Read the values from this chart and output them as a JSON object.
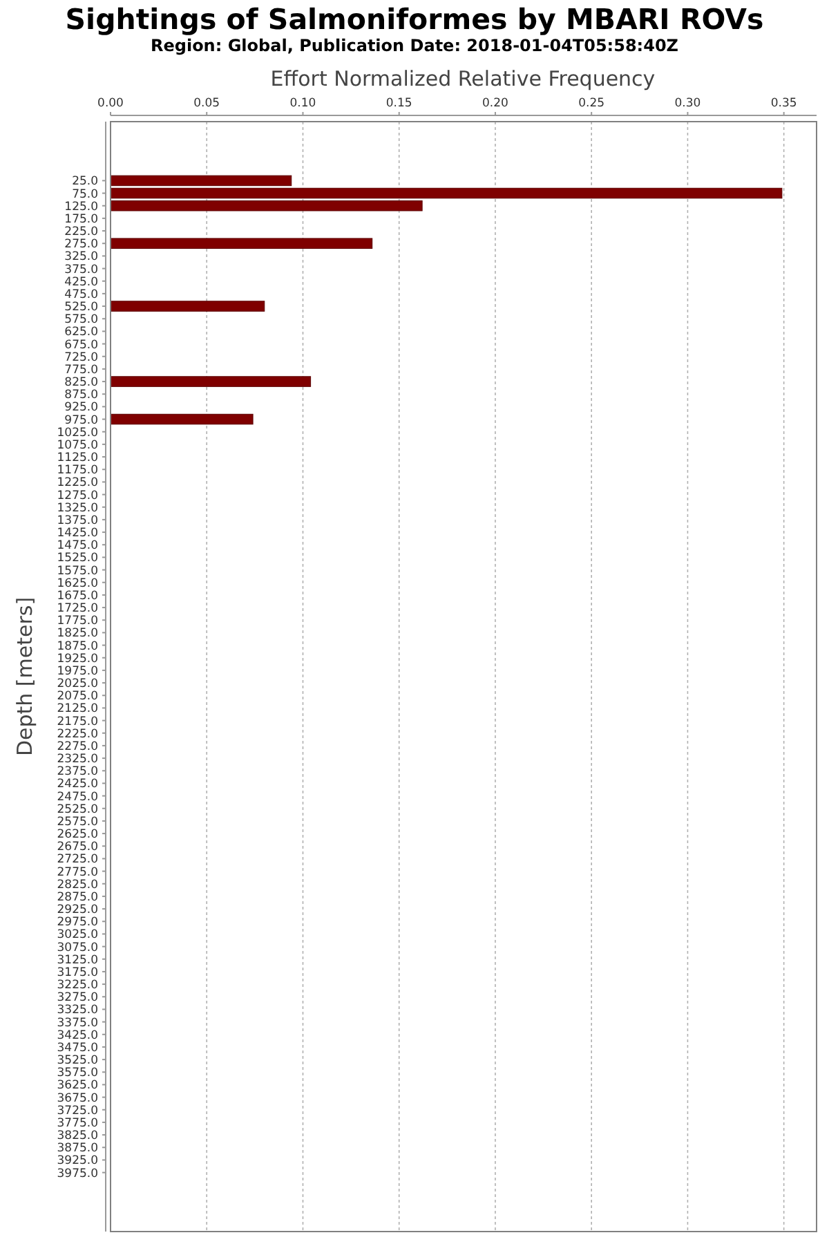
{
  "chart_data": {
    "type": "bar",
    "orientation": "horizontal",
    "title": "Sightings of Salmoniformes by MBARI ROVs",
    "subtitle": "Region: Global, Publication Date: 2018-01-04T05:58:40Z",
    "xlabel": "Effort Normalized Relative Frequency",
    "ylabel": "Depth [meters]",
    "categories": [
      "25.0",
      "75.0",
      "125.0",
      "175.0",
      "225.0",
      "275.0",
      "325.0",
      "375.0",
      "425.0",
      "475.0",
      "525.0",
      "575.0",
      "625.0",
      "675.0",
      "725.0",
      "775.0",
      "825.0",
      "875.0",
      "925.0",
      "975.0",
      "1025.0",
      "1075.0",
      "1125.0",
      "1175.0",
      "1225.0",
      "1275.0",
      "1325.0",
      "1375.0",
      "1425.0",
      "1475.0",
      "1525.0",
      "1575.0",
      "1625.0",
      "1675.0",
      "1725.0",
      "1775.0",
      "1825.0",
      "1875.0",
      "1925.0",
      "1975.0",
      "2025.0",
      "2075.0",
      "2125.0",
      "2175.0",
      "2225.0",
      "2275.0",
      "2325.0",
      "2375.0",
      "2425.0",
      "2475.0",
      "2525.0",
      "2575.0",
      "2625.0",
      "2675.0",
      "2725.0",
      "2775.0",
      "2825.0",
      "2875.0",
      "2925.0",
      "2975.0",
      "3025.0",
      "3075.0",
      "3125.0",
      "3175.0",
      "3225.0",
      "3275.0",
      "3325.0",
      "3375.0",
      "3425.0",
      "3475.0",
      "3525.0",
      "3575.0",
      "3625.0",
      "3675.0",
      "3725.0",
      "3775.0",
      "3825.0",
      "3875.0",
      "3925.0",
      "3975.0"
    ],
    "values": [
      0.094,
      0.349,
      0.162,
      null,
      null,
      0.136,
      null,
      null,
      null,
      null,
      0.08,
      null,
      null,
      null,
      null,
      null,
      0.104,
      null,
      null,
      0.074,
      null,
      null,
      null,
      null,
      null,
      null,
      null,
      null,
      null,
      null,
      null,
      null,
      null,
      null,
      null,
      null,
      null,
      null,
      null,
      null,
      null,
      null,
      null,
      null,
      null,
      null,
      null,
      null,
      null,
      null,
      null,
      null,
      null,
      null,
      null,
      null,
      null,
      null,
      null,
      null,
      null,
      null,
      null,
      null,
      null,
      null,
      null,
      null,
      null,
      null,
      null,
      null,
      null,
      null,
      null,
      null,
      null,
      null,
      null,
      null
    ],
    "color": "#7f0000",
    "xlim": [
      0,
      0.367
    ],
    "xticks": [
      {
        "value": 0,
        "label": "0.00"
      },
      {
        "value": 0.05,
        "label": "0.05"
      },
      {
        "value": 0.1,
        "label": "0.10"
      },
      {
        "value": 0.15,
        "label": "0.15"
      },
      {
        "value": 0.2,
        "label": "0.20"
      },
      {
        "value": 0.25,
        "label": "0.25"
      },
      {
        "value": 0.3,
        "label": "0.30"
      },
      {
        "value": 0.35,
        "label": "0.35"
      }
    ],
    "grid": "x"
  }
}
